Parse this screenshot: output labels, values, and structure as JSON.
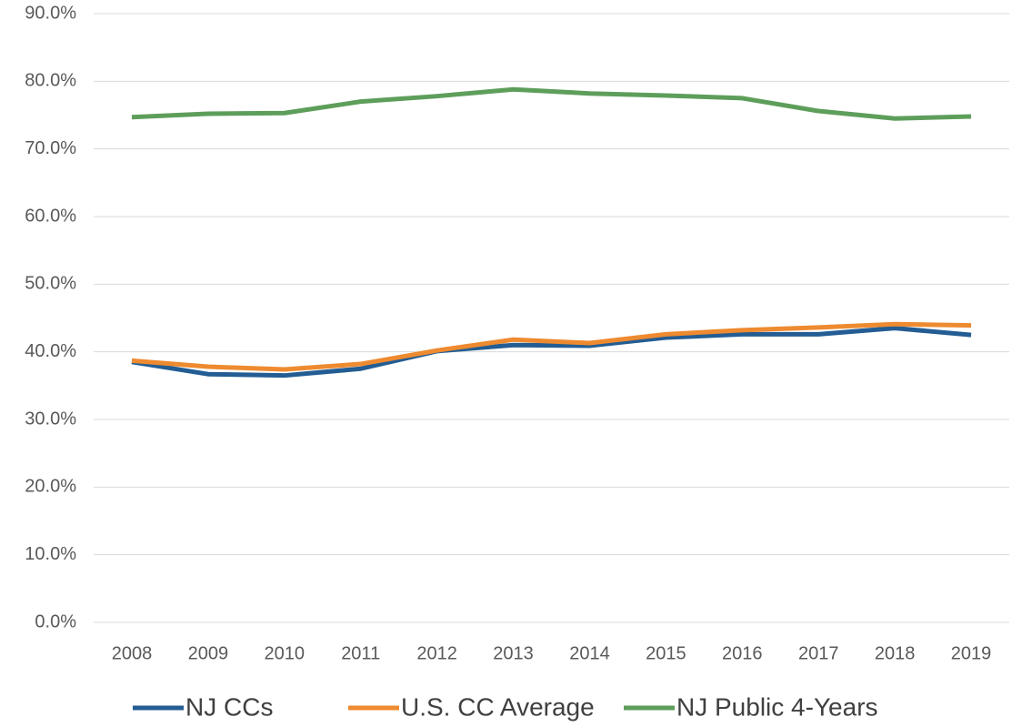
{
  "chart_data": {
    "type": "line",
    "categories": [
      "2008",
      "2009",
      "2010",
      "2011",
      "2012",
      "2013",
      "2014",
      "2015",
      "2016",
      "2017",
      "2018",
      "2019"
    ],
    "series": [
      {
        "name": "NJ CCs",
        "color": "#235d93",
        "values": [
          38.5,
          36.7,
          36.5,
          37.5,
          40.1,
          41.0,
          40.9,
          42.1,
          42.6,
          42.6,
          43.5,
          42.5
        ]
      },
      {
        "name": "U.S. CC Average",
        "color": "#ee8a2f",
        "values": [
          38.7,
          37.8,
          37.4,
          38.2,
          40.2,
          41.8,
          41.3,
          42.6,
          43.2,
          43.6,
          44.1,
          43.9
        ]
      },
      {
        "name": "NJ Public 4-Years",
        "color": "#5e9e5b",
        "values": [
          74.7,
          75.2,
          75.3,
          77.0,
          77.8,
          78.8,
          78.2,
          77.9,
          77.5,
          75.6,
          74.5,
          74.8
        ]
      }
    ],
    "ylim": [
      0,
      90
    ],
    "yticks": [
      {
        "value": 0,
        "label": "0.0%"
      },
      {
        "value": 10,
        "label": "10.0%"
      },
      {
        "value": 20,
        "label": "20.0%"
      },
      {
        "value": 30,
        "label": "30.0%"
      },
      {
        "value": 40,
        "label": "40.0%"
      },
      {
        "value": 50,
        "label": "50.0%"
      },
      {
        "value": 60,
        "label": "60.0%"
      },
      {
        "value": 70,
        "label": "70.0%"
      },
      {
        "value": 80,
        "label": "80.0%"
      },
      {
        "value": 90,
        "label": "90.0%"
      }
    ],
    "grid": true,
    "legend": "bottom"
  }
}
